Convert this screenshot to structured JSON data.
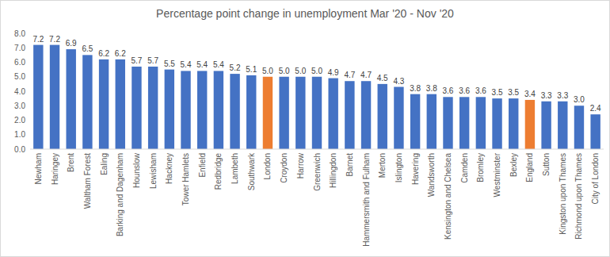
{
  "chart_data": {
    "type": "bar",
    "title": "Percentage point change in unemployment Mar '20 - Nov '20",
    "categories": [
      "Newham",
      "Haringey",
      "Brent",
      "Waltham Forest",
      "Ealing",
      "Barking and Dagenham",
      "Hounslow",
      "Lewisham",
      "Hackney",
      "Tower Hamlets",
      "Enfield",
      "Redbridge",
      "Lambeth",
      "Southwark",
      "London",
      "Croydon",
      "Harrow",
      "Greenwich",
      "Hillingdon",
      "Barnet",
      "Hammersmith and Fulham",
      "Merton",
      "Islington",
      "Havering",
      "Wandsworth",
      "Kensington and Chelsea",
      "Camden",
      "Bromley",
      "Westminster",
      "Bexley",
      "England",
      "Sutton",
      "Kingston upon Thames",
      "Richmond upon Thames",
      "City of London"
    ],
    "values": [
      7.2,
      7.2,
      6.9,
      6.5,
      6.2,
      6.2,
      5.7,
      5.7,
      5.5,
      5.4,
      5.4,
      5.4,
      5.2,
      5.1,
      5.0,
      5.0,
      5.0,
      5.0,
      4.9,
      4.7,
      4.7,
      4.5,
      4.3,
      3.8,
      3.8,
      3.6,
      3.6,
      3.6,
      3.5,
      3.5,
      3.4,
      3.3,
      3.3,
      3.0,
      2.4
    ],
    "value_labels": [
      "7.2",
      "7.2",
      "6.9",
      "6.5",
      "6.2",
      "6.2",
      "5.7",
      "5.7",
      "5.5",
      "5.4",
      "5.4",
      "5.4",
      "5.2",
      "5.1",
      "5.0",
      "5.0",
      "5.0",
      "5.0",
      "4.9",
      "4.7",
      "4.7",
      "4.5",
      "4.3",
      "3.8",
      "3.8",
      "3.6",
      "3.6",
      "3.6",
      "3.5",
      "3.5",
      "3.4",
      "3.3",
      "3.3",
      "3.0",
      "2.4"
    ],
    "colors": [
      "#4472c4",
      "#4472c4",
      "#4472c4",
      "#4472c4",
      "#4472c4",
      "#4472c4",
      "#4472c4",
      "#4472c4",
      "#4472c4",
      "#4472c4",
      "#4472c4",
      "#4472c4",
      "#4472c4",
      "#4472c4",
      "#ed7d31",
      "#4472c4",
      "#4472c4",
      "#4472c4",
      "#4472c4",
      "#4472c4",
      "#4472c4",
      "#4472c4",
      "#4472c4",
      "#4472c4",
      "#4472c4",
      "#4472c4",
      "#4472c4",
      "#4472c4",
      "#4472c4",
      "#4472c4",
      "#ed7d31",
      "#4472c4",
      "#4472c4",
      "#4472c4",
      "#4472c4"
    ],
    "ylim": [
      0,
      8
    ],
    "yticks": [
      {
        "value": 0,
        "label": "0.0"
      },
      {
        "value": 1,
        "label": "1.0"
      },
      {
        "value": 2,
        "label": "2.0"
      },
      {
        "value": 3,
        "label": "3.0"
      },
      {
        "value": 4,
        "label": "4.0"
      },
      {
        "value": 5,
        "label": "5.0"
      },
      {
        "value": 6,
        "label": "6.0"
      },
      {
        "value": 7,
        "label": "7.0"
      },
      {
        "value": 8,
        "label": "8.0"
      }
    ],
    "grid": false,
    "data_labels": true
  }
}
